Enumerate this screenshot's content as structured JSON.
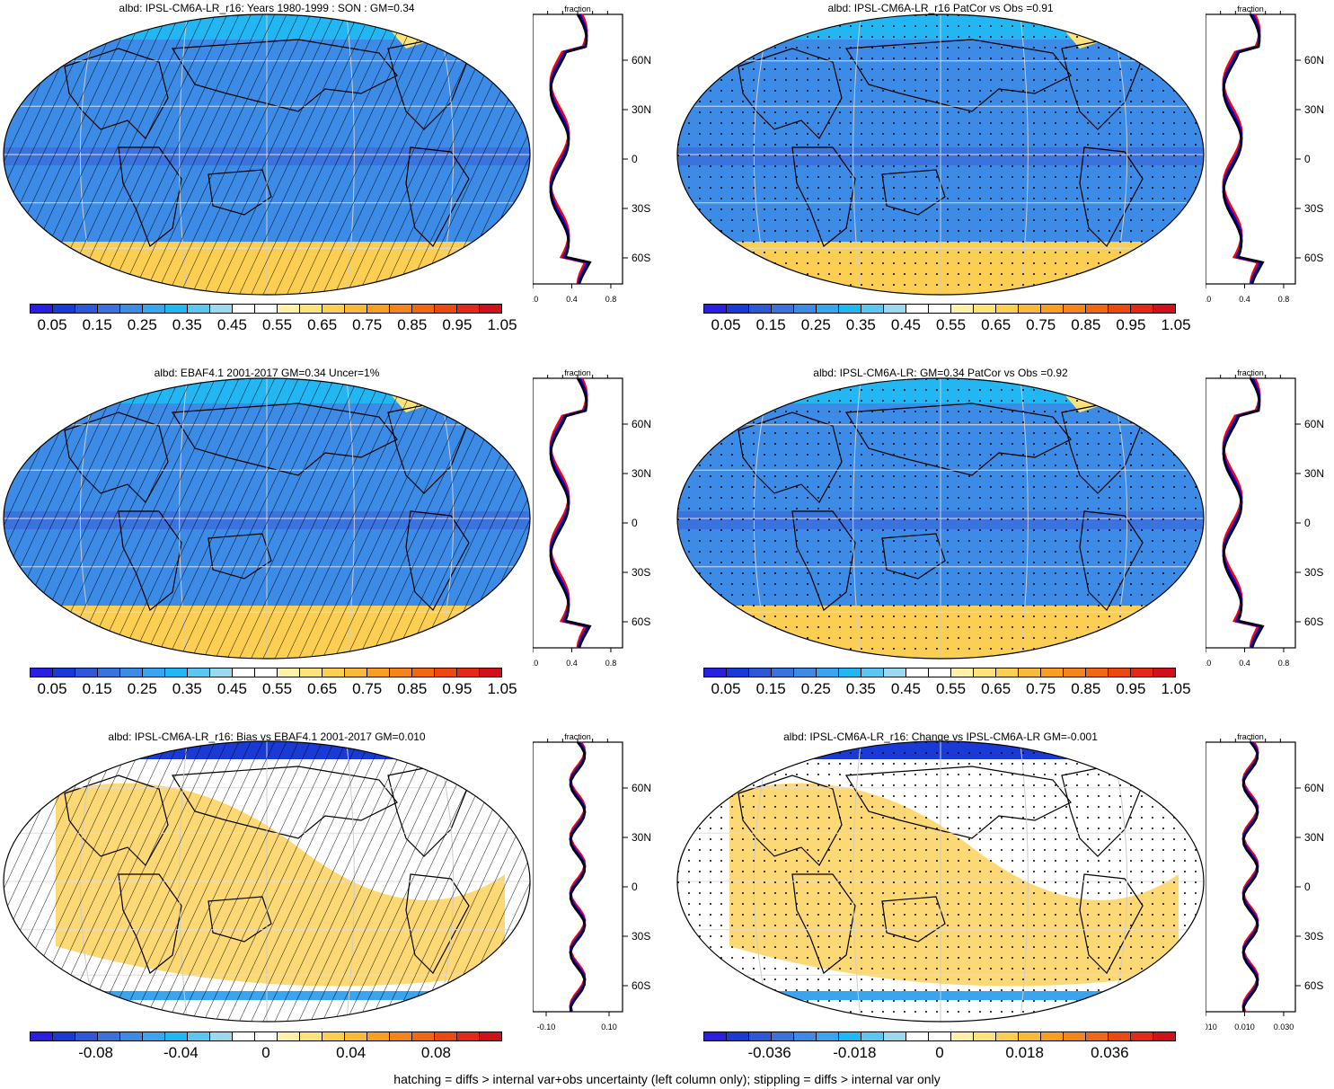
{
  "colors": {
    "seq": [
      "#2a1fe0",
      "#1a3ad6",
      "#2d58d8",
      "#3a72de",
      "#3c8be6",
      "#3aa4ef",
      "#22b6f2",
      "#5bc6f0",
      "#9cd8ef",
      "#ffffff",
      "#ffffff",
      "#fff2a8",
      "#fde37a",
      "#fccf52",
      "#f9b93a",
      "#f89e22",
      "#f5841c",
      "#f06814",
      "#ec4910",
      "#e4281a",
      "#d0101a"
    ],
    "div": [
      "#2a1fe0",
      "#1a3ad6",
      "#2d58d8",
      "#3a72de",
      "#3c8be6",
      "#3aa4ef",
      "#22b6f2",
      "#5bc6f0",
      "#9cd8ef",
      "#ffffff",
      "#ffffff",
      "#fff2a8",
      "#fde37a",
      "#fccf52",
      "#f9b93a",
      "#f89e22",
      "#f5841c",
      "#f06814",
      "#ec4910",
      "#e4281a",
      "#d0101a"
    ],
    "profile_model": "#000000",
    "profile_obs": "#ff0000",
    "profile_other": "#0000ff"
  },
  "footer": "hatching = diffs > internal var+obs uncertainty (left column only); stippling = diffs > internal var only",
  "panels": [
    {
      "title": "albd: IPSL-CM6A-LR_r16: Years 1980-1999 : SON : GM=0.34",
      "scheme": "seq",
      "pattern": "hatch",
      "cbar_labels": [
        "0.05",
        "0.15",
        "0.25",
        "0.35",
        "0.45",
        "0.55",
        "0.65",
        "0.75",
        "0.85",
        "0.95",
        "1.05"
      ],
      "profile_xticks": [
        "0.0",
        "0.4",
        "0.8"
      ]
    },
    {
      "title": "albd: IPSL-CM6A-LR_r16 PatCor vs Obs =0.91",
      "scheme": "seq",
      "pattern": "stipple",
      "cbar_labels": [
        "0.05",
        "0.15",
        "0.25",
        "0.35",
        "0.45",
        "0.55",
        "0.65",
        "0.75",
        "0.85",
        "0.95",
        "1.05"
      ],
      "profile_xticks": [
        "0.0",
        "0.4",
        "0.8"
      ]
    },
    {
      "title": "albd: EBAF4.1 2001-2017 GM=0.34 Uncer=1%",
      "scheme": "seq",
      "pattern": "hatch",
      "cbar_labels": [
        "0.05",
        "0.15",
        "0.25",
        "0.35",
        "0.45",
        "0.55",
        "0.65",
        "0.75",
        "0.85",
        "0.95",
        "1.05"
      ],
      "profile_xticks": [
        "0.0",
        "0.4",
        "0.8"
      ]
    },
    {
      "title": "albd: IPSL-CM6A-LR: GM=0.34 PatCor vs Obs =0.92",
      "scheme": "seq",
      "pattern": "stipple",
      "cbar_labels": [
        "0.05",
        "0.15",
        "0.25",
        "0.35",
        "0.45",
        "0.55",
        "0.65",
        "0.75",
        "0.85",
        "0.95",
        "1.05"
      ],
      "profile_xticks": [
        "0.0",
        "0.4",
        "0.8"
      ]
    },
    {
      "title": "albd: IPSL-CM6A-LR_r16: Bias vs EBAF4.1 2001-2017  GM=0.010",
      "scheme": "div",
      "pattern": "hatch",
      "cbar_labels": [
        "-0.08",
        "-0.04",
        "0",
        "0.04",
        "0.08"
      ],
      "profile_xticks": [
        "-0.10",
        "0.10"
      ]
    },
    {
      "title": "albd: IPSL-CM6A-LR_r16: Change vs IPSL-CM6A-LR GM=-0.001",
      "scheme": "div",
      "pattern": "stipple",
      "cbar_labels": [
        "-0.036",
        "-0.018",
        "0",
        "0.018",
        "0.036"
      ],
      "profile_xticks": [
        "-0.010",
        "0.010",
        "0.030"
      ]
    }
  ],
  "profile": {
    "title": "fraction",
    "lat_labels": [
      "60N",
      "30N",
      "0",
      "30S",
      "60S"
    ]
  },
  "chart_data": [
    {
      "type": "heatmap",
      "title": "albd: IPSL-CM6A-LR_r16: Years 1980-1999 : SON : GM=0.34",
      "levels": [
        0.05,
        0.1,
        0.15,
        0.2,
        0.25,
        0.3,
        0.35,
        0.4,
        0.45,
        0.5,
        0.55,
        0.6,
        0.65,
        0.7,
        0.75,
        0.8,
        0.85,
        0.9,
        0.95,
        1.0,
        1.05
      ]
    },
    {
      "type": "heatmap",
      "title": "albd: IPSL-CM6A-LR_r16 PatCor vs Obs =0.91",
      "levels": [
        0.05,
        0.1,
        0.15,
        0.2,
        0.25,
        0.3,
        0.35,
        0.4,
        0.45,
        0.5,
        0.55,
        0.6,
        0.65,
        0.7,
        0.75,
        0.8,
        0.85,
        0.9,
        0.95,
        1.0,
        1.05
      ]
    },
    {
      "type": "heatmap",
      "title": "albd: EBAF4.1 2001-2017 GM=0.34 Uncer=1%",
      "levels": [
        0.05,
        0.1,
        0.15,
        0.2,
        0.25,
        0.3,
        0.35,
        0.4,
        0.45,
        0.5,
        0.55,
        0.6,
        0.65,
        0.7,
        0.75,
        0.8,
        0.85,
        0.9,
        0.95,
        1.0,
        1.05
      ]
    },
    {
      "type": "heatmap",
      "title": "albd: IPSL-CM6A-LR: GM=0.34 PatCor vs Obs =0.92",
      "levels": [
        0.05,
        0.1,
        0.15,
        0.2,
        0.25,
        0.3,
        0.35,
        0.4,
        0.45,
        0.5,
        0.55,
        0.6,
        0.65,
        0.7,
        0.75,
        0.8,
        0.85,
        0.9,
        0.95,
        1.0,
        1.05
      ]
    },
    {
      "type": "heatmap",
      "title": "albd: IPSL-CM6A-LR_r16: Bias vs EBAF4.1 2001-2017  GM=0.010",
      "levels": [
        -0.1,
        -0.09,
        -0.08,
        -0.07,
        -0.06,
        -0.05,
        -0.04,
        -0.03,
        -0.02,
        -0.01,
        0,
        0.01,
        0.02,
        0.03,
        0.04,
        0.05,
        0.06,
        0.07,
        0.08,
        0.09,
        0.1
      ]
    },
    {
      "type": "heatmap",
      "title": "albd: IPSL-CM6A-LR_r16: Change vs IPSL-CM6A-LR GM=-0.001",
      "levels": [
        -0.045,
        -0.0405,
        -0.036,
        -0.0315,
        -0.027,
        -0.0225,
        -0.018,
        -0.0135,
        -0.009,
        -0.0045,
        0,
        0.0045,
        0.009,
        0.0135,
        0.018,
        0.0225,
        0.027,
        0.0315,
        0.036,
        0.0405,
        0.045
      ]
    }
  ]
}
